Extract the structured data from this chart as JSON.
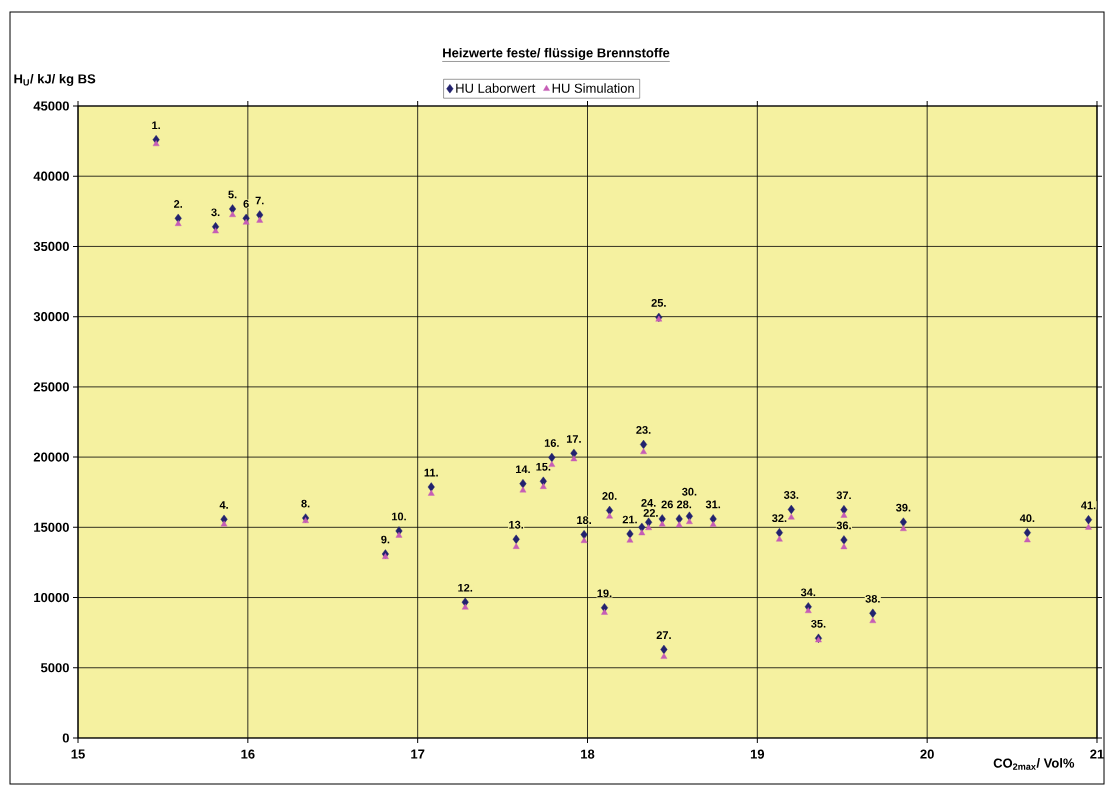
{
  "chart_data": {
    "type": "scatter",
    "title": "Heizwerte feste/ flüssige Brennstoffe",
    "xlabel": "CO$_{2max}$/ Vol%",
    "ylabel": "H$_{U}$/ kJ/ kg BS",
    "x": [
      15.46,
      15.59,
      15.81,
      15.86,
      15.91,
      15.99,
      16.07,
      16.34,
      16.81,
      16.89,
      17.08,
      17.28,
      17.58,
      17.62,
      17.74,
      17.79,
      17.92,
      17.98,
      18.1,
      18.13,
      18.25,
      18.32,
      18.33,
      18.36,
      18.42,
      18.44,
      18.45,
      18.54,
      18.6,
      18.74,
      19.13,
      19.2,
      19.3,
      19.36,
      19.51,
      19.51,
      19.68,
      19.86,
      20.59,
      20.95
    ],
    "series": [
      {
        "name": "HU Laborwert",
        "color": "#22226e",
        "marker": "diamond",
        "values": [
          42600,
          37000,
          36400,
          15570,
          37670,
          37000,
          37240,
          15660,
          13100,
          14740,
          17870,
          9670,
          14150,
          18110,
          18280,
          19970,
          20270,
          14480,
          9270,
          16200,
          14530,
          15000,
          20900,
          15360,
          29950,
          15600,
          6300,
          15600,
          15790,
          15600,
          14620,
          16270,
          9340,
          7100,
          14100,
          16250,
          8880,
          15370,
          14620,
          15540
        ]
      },
      {
        "name": "HU Simulation",
        "color": "#c65db6",
        "marker": "triangle",
        "values": [
          42290,
          36600,
          36080,
          15210,
          37240,
          36700,
          36840,
          15450,
          12890,
          14410,
          17400,
          9290,
          13610,
          17630,
          17880,
          19450,
          19850,
          14030,
          8920,
          15770,
          14060,
          14580,
          20360,
          14950,
          29800,
          15200,
          5780,
          15150,
          15380,
          15180,
          14130,
          15700,
          9040,
          6960,
          13590,
          15830,
          8330,
          14880,
          14080,
          14980
        ]
      }
    ],
    "annotations": [
      {
        "text": "1.",
        "x": 15.46,
        "y": 42600
      },
      {
        "text": "2.",
        "x": 15.59,
        "y": 37000
      },
      {
        "text": "3.",
        "x": 15.81,
        "y": 36400
      },
      {
        "text": "4.",
        "x": 15.86,
        "y": 15570
      },
      {
        "text": "5.",
        "x": 15.91,
        "y": 37670
      },
      {
        "text": "6",
        "x": 15.99,
        "y": 37000
      },
      {
        "text": "7.",
        "x": 16.07,
        "y": 37240
      },
      {
        "text": "8.",
        "x": 16.34,
        "y": 15660
      },
      {
        "text": "9.",
        "x": 16.81,
        "y": 13100
      },
      {
        "text": "10.",
        "x": 16.89,
        "y": 14740
      },
      {
        "text": "11.",
        "x": 17.08,
        "y": 17870
      },
      {
        "text": "12.",
        "x": 17.28,
        "y": 9670
      },
      {
        "text": "13.",
        "x": 17.58,
        "y": 14150
      },
      {
        "text": "14.",
        "x": 17.62,
        "y": 18110
      },
      {
        "text": "15.",
        "x": 17.74,
        "y": 18280
      },
      {
        "text": "16.",
        "x": 17.79,
        "y": 19970
      },
      {
        "text": "17.",
        "x": 17.92,
        "y": 20270
      },
      {
        "text": "18.",
        "x": 17.98,
        "y": 14480
      },
      {
        "text": "19.",
        "x": 18.1,
        "y": 9270
      },
      {
        "text": "20.",
        "x": 18.13,
        "y": 16200
      },
      {
        "text": "21.",
        "x": 18.25,
        "y": 14530
      },
      {
        "text": "22.",
        "x": 18.32,
        "y": 15000
      },
      {
        "text": "23.",
        "x": 18.33,
        "y": 20900
      },
      {
        "text": "24.",
        "x": 18.36,
        "y": 15360
      },
      {
        "text": "25.",
        "x": 18.42,
        "y": 29950
      },
      {
        "text": "26",
        "x": 18.44,
        "y": 15600
      },
      {
        "text": "27.",
        "x": 18.45,
        "y": 6300
      },
      {
        "text": "28.",
        "x": 18.54,
        "y": 15600
      },
      {
        "text": "30.",
        "x": 18.6,
        "y": 15790
      },
      {
        "text": "31.",
        "x": 18.74,
        "y": 15600
      },
      {
        "text": "32.",
        "x": 19.13,
        "y": 14620
      },
      {
        "text": "33.",
        "x": 19.2,
        "y": 16270
      },
      {
        "text": "34.",
        "x": 19.3,
        "y": 9340
      },
      {
        "text": "35.",
        "x": 19.36,
        "y": 7100
      },
      {
        "text": "36.",
        "x": 19.51,
        "y": 14100
      },
      {
        "text": "37.",
        "x": 19.51,
        "y": 16250
      },
      {
        "text": "38.",
        "x": 19.68,
        "y": 8880
      },
      {
        "text": "39.",
        "x": 19.86,
        "y": 15370
      },
      {
        "text": "40.",
        "x": 20.59,
        "y": 14620
      },
      {
        "text": "41.",
        "x": 20.95,
        "y": 15540
      }
    ],
    "xlim": [
      15,
      21
    ],
    "xticks": [
      15,
      16,
      17,
      18,
      19,
      20,
      21
    ],
    "ylim": [
      0,
      45000
    ],
    "yticks": [
      0,
      5000,
      10000,
      15000,
      20000,
      25000,
      30000,
      35000,
      40000,
      45000
    ],
    "grid": true,
    "legend": "top"
  }
}
